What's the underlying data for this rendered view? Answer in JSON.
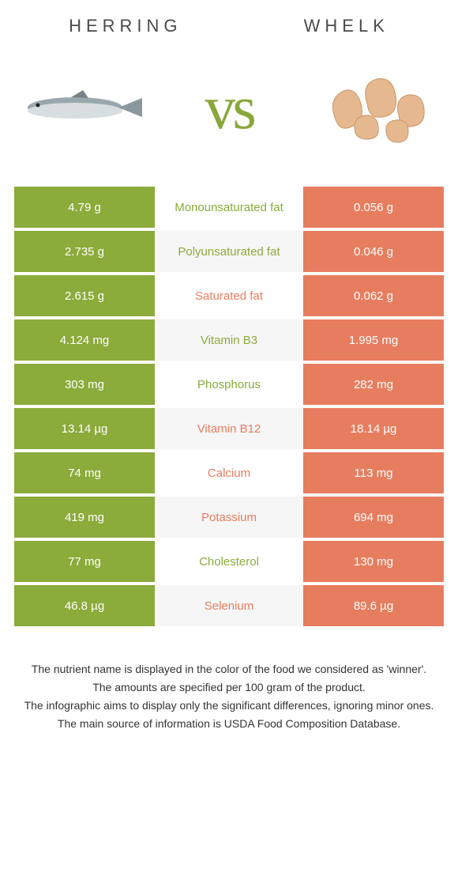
{
  "header": {
    "left_title": "HERRING",
    "right_title": "WHELK",
    "vs": "vs"
  },
  "colors": {
    "left": "#8bab3a",
    "right": "#e77d5f",
    "vs_text": "#88a83a",
    "title_text": "#4a4a4a",
    "row_alt_bg": "#f6f6f6"
  },
  "rows": [
    {
      "left": "4.79 g",
      "label": "Monounsaturated fat",
      "right": "0.056 g",
      "winner": "left"
    },
    {
      "left": "2.735 g",
      "label": "Polyunsaturated fat",
      "right": "0.046 g",
      "winner": "left"
    },
    {
      "left": "2.615 g",
      "label": "Saturated fat",
      "right": "0.062 g",
      "winner": "right"
    },
    {
      "left": "4.124 mg",
      "label": "Vitamin B3",
      "right": "1.995 mg",
      "winner": "left"
    },
    {
      "left": "303 mg",
      "label": "Phosphorus",
      "right": "282 mg",
      "winner": "left"
    },
    {
      "left": "13.14 µg",
      "label": "Vitamin B12",
      "right": "18.14 µg",
      "winner": "right"
    },
    {
      "left": "74 mg",
      "label": "Calcium",
      "right": "113 mg",
      "winner": "right"
    },
    {
      "left": "419 mg",
      "label": "Potassium",
      "right": "694 mg",
      "winner": "right"
    },
    {
      "left": "77 mg",
      "label": "Cholesterol",
      "right": "130 mg",
      "winner": "left"
    },
    {
      "left": "46.8 µg",
      "label": "Selenium",
      "right": "89.6 µg",
      "winner": "right"
    }
  ],
  "footnotes": [
    "The nutrient name is displayed in the color of the food we considered as 'winner'.",
    "The amounts are specified per 100 gram of the product.",
    "The infographic aims to display only the significant differences, ignoring minor ones.",
    "The main source of information is USDA Food Composition Database."
  ]
}
